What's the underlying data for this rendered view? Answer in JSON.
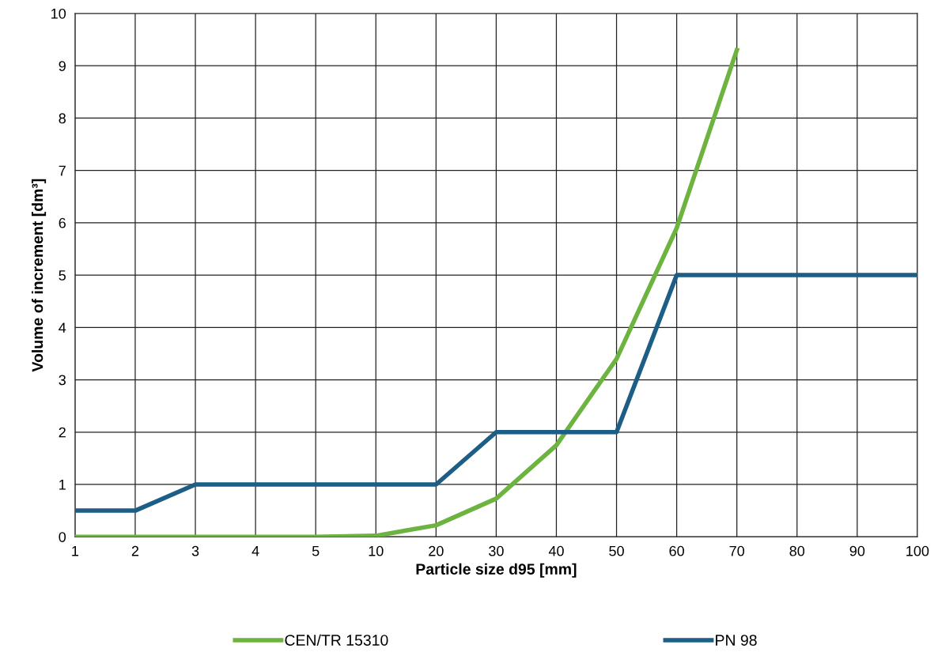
{
  "chart_data": {
    "type": "line",
    "xlabel": "Particle size d95 [mm]",
    "ylabel": "Volume of increment [dm³]",
    "categories": [
      "1",
      "2",
      "3",
      "4",
      "5",
      "10",
      "20",
      "30",
      "40",
      "50",
      "60",
      "70",
      "80",
      "90",
      "100"
    ],
    "series": [
      {
        "name": "CEN/TR 15310",
        "color": "#6cb33f",
        "values": [
          0,
          0,
          0,
          0,
          0,
          0.02,
          0.22,
          0.73,
          1.75,
          3.4,
          5.9,
          9.3,
          null,
          null,
          null
        ]
      },
      {
        "name": "PN 98",
        "color": "#1d5e87",
        "values": [
          0.5,
          0.5,
          1,
          1,
          1,
          1,
          1,
          2,
          2,
          2,
          5,
          5,
          5,
          5,
          5
        ]
      }
    ],
    "ylim": [
      0,
      10
    ],
    "yticks": [
      0,
      1,
      2,
      3,
      4,
      5,
      6,
      7,
      8,
      9,
      10
    ],
    "grid": true,
    "legend": "bottom",
    "marker": "none",
    "line_style": "solid"
  }
}
